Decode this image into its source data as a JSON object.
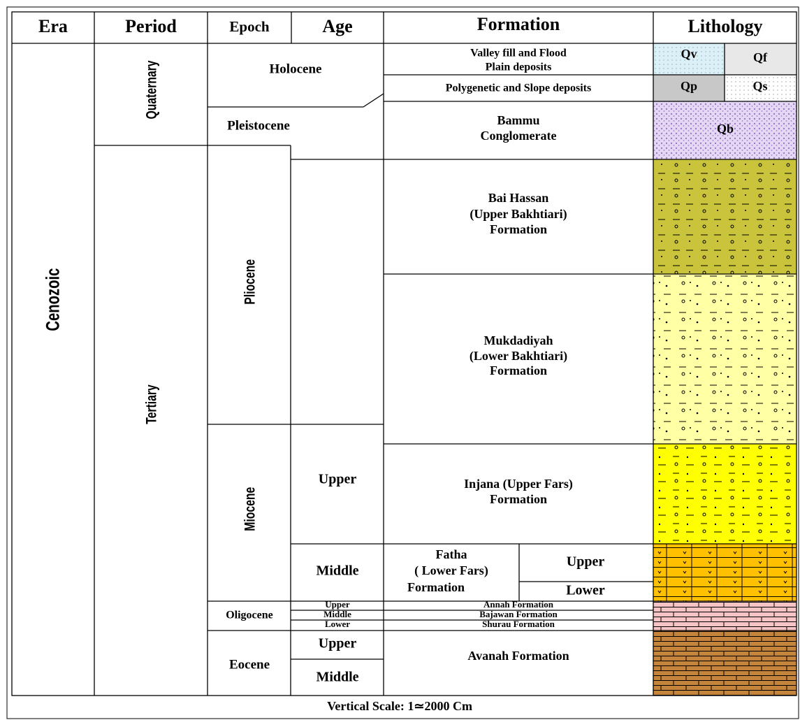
{
  "headers": [
    "Era",
    "Period",
    "Epoch",
    "Age",
    "Formation",
    "Lithology"
  ],
  "era": "Cenozoic",
  "periods": [
    "Quaternary",
    "Tertiary"
  ],
  "epochs": [
    "Holocene",
    "Pleistocene",
    "Pliocene",
    "Miocene",
    "Oligocene",
    "Eocene"
  ],
  "ages": [
    "Upper",
    "Middle",
    "Upper",
    "Middle",
    "Lower",
    "Upper",
    "Middle"
  ],
  "formations": [
    [
      "Valley fill and Flood",
      "Plain deposits"
    ],
    [
      "Polygenetic and Slope deposits"
    ],
    [
      "Bammu",
      "Conglomerate"
    ],
    [
      "Bai Hassan",
      "(Upper Bakhtiari)",
      "Formation"
    ],
    [
      "Mukdadiyah",
      "(Lower Bakhtiari)",
      "Formation"
    ],
    [
      "Injana (Upper Fars)",
      "Formation"
    ],
    [
      "Fatha",
      "( Lower Fars)",
      "Formation"
    ],
    [
      "Annah Formation"
    ],
    [
      "Bajawan Formation"
    ],
    [
      "Shurau Formation"
    ],
    [
      "Avanah Formation"
    ]
  ],
  "fatha_members": [
    "Upper",
    "Lower"
  ],
  "lithology": [
    "Qv",
    "Qf",
    "Qp",
    "Qs",
    "Qb"
  ],
  "footer": "Vertical Scale: 1≃2000 Cm"
}
